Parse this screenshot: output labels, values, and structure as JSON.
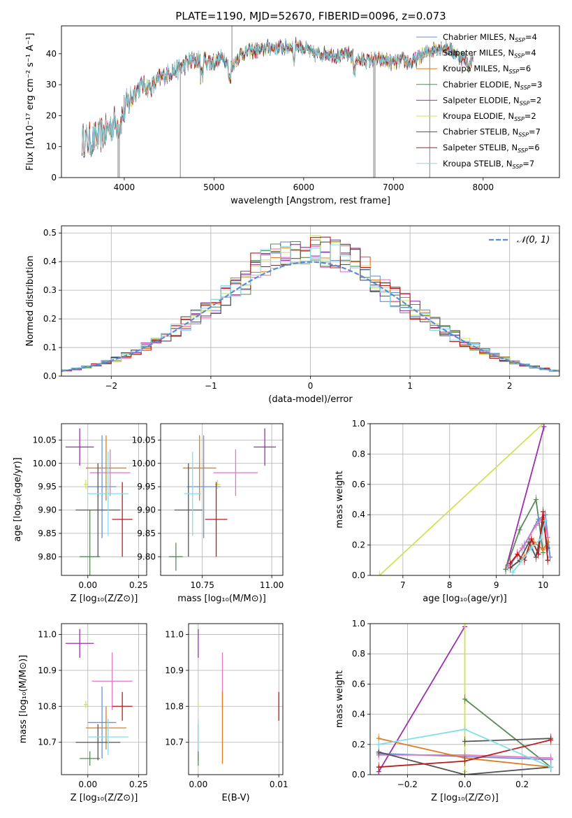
{
  "figure_title": "PLATE=1190, MJD=52670, FIBERID=0096, z=0.073",
  "colors": {
    "chabrier_miles": "#6b8fd6",
    "salpeter_miles": "#e377c2",
    "kroupa_miles": "#e07b1f",
    "chabrier_elodie": "#5a8a5a",
    "salpeter_elodie": "#9b2fae",
    "kroupa_elodie": "#d4e157",
    "chabrier_stelib": "#555555",
    "salpeter_stelib": "#b71c1c",
    "kroupa_stelib": "#80deea",
    "gauss": "#5b8bd6"
  },
  "chart_data": [
    {
      "type": "line",
      "id": "spectrum",
      "title": "PLATE=1190, MJD=52670, FIBERID=0096, z=0.073",
      "xlabel": "wavelength [Angstrom, rest frame]",
      "ylabel": "Flux [fλ10⁻¹⁷ erg cm⁻² s⁻¹ A⁻¹]",
      "xlim": [
        3300,
        8850
      ],
      "ylim": [
        0,
        49
      ],
      "xticks": [
        "4000",
        "5000",
        "6000",
        "7000",
        "8000"
      ],
      "xtick_values": [
        4000,
        5000,
        6000,
        7000,
        8000
      ],
      "yticks": [
        "0",
        "10",
        "20",
        "30",
        "40"
      ],
      "ytick_values": [
        0,
        10,
        20,
        30,
        40
      ],
      "legend": "top-right",
      "continuum": [
        [
          3530,
          12
        ],
        [
          3650,
          12
        ],
        [
          3800,
          15
        ],
        [
          3900,
          18
        ],
        [
          3950,
          17
        ],
        [
          4000,
          22
        ],
        [
          4100,
          27
        ],
        [
          4200,
          30
        ],
        [
          4300,
          29
        ],
        [
          4400,
          32
        ],
        [
          4500,
          34
        ],
        [
          4600,
          35
        ],
        [
          4700,
          37
        ],
        [
          4800,
          38
        ],
        [
          4900,
          38
        ],
        [
          5000,
          37
        ],
        [
          5100,
          39
        ],
        [
          5200,
          36
        ],
        [
          5300,
          40
        ],
        [
          5400,
          41
        ],
        [
          5500,
          41
        ],
        [
          5600,
          42
        ],
        [
          5700,
          42
        ],
        [
          5800,
          42
        ],
        [
          5900,
          43
        ],
        [
          6000,
          42
        ],
        [
          6100,
          40
        ],
        [
          6200,
          40
        ],
        [
          6300,
          40
        ],
        [
          6400,
          39
        ],
        [
          6500,
          40
        ],
        [
          6600,
          38
        ],
        [
          6700,
          38
        ],
        [
          6800,
          38
        ],
        [
          6900,
          38
        ],
        [
          7000,
          37
        ],
        [
          7100,
          38
        ],
        [
          7200,
          37
        ],
        [
          7300,
          39
        ],
        [
          7400,
          41
        ],
        [
          7500,
          42
        ],
        [
          7600,
          42
        ],
        [
          7700,
          40
        ],
        [
          7800,
          38
        ],
        [
          7850,
          36
        ],
        [
          7900,
          41
        ]
      ],
      "series": [
        {
          "name": "Chabrier MILES, N",
          "sub": "SSP",
          "eq": "=4",
          "color_key": "chabrier_miles"
        },
        {
          "name": "Salpeter MILES, N",
          "sub": "SSP",
          "eq": "=4",
          "color_key": "salpeter_miles"
        },
        {
          "name": "Kroupa MILES, N",
          "sub": "SSP",
          "eq": "=6",
          "color_key": "kroupa_miles"
        },
        {
          "name": "Chabrier ELODIE, N",
          "sub": "SSP",
          "eq": "=3",
          "color_key": "chabrier_elodie"
        },
        {
          "name": "Salpeter ELODIE, N",
          "sub": "SSP",
          "eq": "=2",
          "color_key": "salpeter_elodie"
        },
        {
          "name": "Kroupa ELODIE, N",
          "sub": "SSP",
          "eq": "=2",
          "color_key": "kroupa_elodie"
        },
        {
          "name": "Chabrier STELIB, N",
          "sub": "SSP",
          "eq": "=7",
          "color_key": "chabrier_stelib"
        },
        {
          "name": "Salpeter STELIB, N",
          "sub": "SSP",
          "eq": "=6",
          "color_key": "salpeter_stelib"
        },
        {
          "name": "Kroupa STELIB, N",
          "sub": "SSP",
          "eq": "=7",
          "color_key": "kroupa_stelib"
        }
      ],
      "spikes": [
        [
          3930,
          0
        ],
        [
          3945,
          0
        ],
        [
          4625,
          0
        ],
        [
          5200,
          49
        ],
        [
          6780,
          0
        ],
        [
          6795,
          0
        ],
        [
          7405,
          0
        ]
      ]
    },
    {
      "type": "histogram",
      "id": "residuals",
      "xlabel": "(data-model)/error",
      "ylabel": "Normed distribution",
      "xlim": [
        -2.5,
        2.5
      ],
      "ylim": [
        0,
        0.525
      ],
      "xticks": [
        "−2",
        "−1",
        "0",
        "1",
        "2"
      ],
      "xtick_values": [
        -2,
        -1,
        0,
        1,
        2
      ],
      "yticks": [
        "0.0",
        "0.1",
        "0.2",
        "0.3",
        "0.4",
        "0.5"
      ],
      "ytick_values": [
        0,
        0.1,
        0.2,
        0.3,
        0.4,
        0.5
      ],
      "bin_width": 0.1,
      "legend_label": "𝒩(0, 1)",
      "legend": "top-right"
    },
    {
      "type": "scatter",
      "id": "age_vs_Z",
      "xlabel": "Z [log₁₀(Z/Z⊙)]",
      "ylabel": "age  [log₁₀(age/yr)]",
      "xlim": [
        -0.13,
        0.29
      ],
      "ylim": [
        9.76,
        10.085
      ],
      "xticks": [
        "0.00",
        "0.25"
      ],
      "xtick_values": [
        0,
        0.25
      ],
      "yticks": [
        "9.80",
        "9.85",
        "9.90",
        "9.95",
        "10.00",
        "10.05"
      ],
      "ytick_values": [
        9.8,
        9.85,
        9.9,
        9.95,
        10.0,
        10.05
      ],
      "points": [
        {
          "x": 0.07,
          "y": 9.95,
          "xerr": 0.07,
          "yerr": 0.11,
          "color_key": "chabrier_miles"
        },
        {
          "x": 0.11,
          "y": 9.98,
          "xerr": 0.1,
          "yerr": 0.05,
          "color_key": "salpeter_miles"
        },
        {
          "x": 0.09,
          "y": 9.99,
          "xerr": 0.1,
          "yerr": 0.07,
          "color_key": "kroupa_miles"
        },
        {
          "x": 0.01,
          "y": 9.8,
          "xerr": 0.05,
          "yerr": 0.1,
          "color_key": "chabrier_elodie"
        },
        {
          "x": -0.04,
          "y": 10.035,
          "xerr": 0.07,
          "yerr": 0.04,
          "color_key": "salpeter_elodie"
        },
        {
          "x": -0.01,
          "y": 9.955,
          "xerr": 0.01,
          "yerr": 0.01,
          "color_key": "kroupa_elodie"
        },
        {
          "x": 0.05,
          "y": 9.9,
          "xerr": 0.11,
          "yerr": 0.1,
          "color_key": "chabrier_stelib"
        },
        {
          "x": 0.17,
          "y": 9.88,
          "xerr": 0.05,
          "yerr": 0.08,
          "color_key": "salpeter_stelib"
        },
        {
          "x": 0.1,
          "y": 9.935,
          "xerr": 0.1,
          "yerr": 0.09,
          "color_key": "kroupa_stelib"
        }
      ]
    },
    {
      "type": "scatter",
      "id": "age_vs_mass",
      "xlabel": "mass [log₁₀(M/M⊙)]",
      "ylabel": "",
      "xlim": [
        10.6,
        11.04
      ],
      "ylim": [
        9.76,
        10.085
      ],
      "xticks": [
        "10.75",
        "11.00"
      ],
      "xtick_values": [
        10.75,
        11.0
      ],
      "yticks": [
        "9.80",
        "9.85",
        "9.90",
        "9.95",
        "10.00",
        "10.05"
      ],
      "ytick_values": [
        9.8,
        9.85,
        9.9,
        9.95,
        10.0,
        10.05
      ],
      "points": [
        {
          "x": 10.755,
          "y": 9.95,
          "xerr": 0.06,
          "yerr": 0.11,
          "color_key": "chabrier_miles"
        },
        {
          "x": 10.87,
          "y": 9.98,
          "xerr": 0.08,
          "yerr": 0.05,
          "color_key": "salpeter_miles"
        },
        {
          "x": 10.74,
          "y": 9.99,
          "xerr": 0.06,
          "yerr": 0.07,
          "color_key": "kroupa_miles"
        },
        {
          "x": 10.655,
          "y": 9.8,
          "xerr": 0.025,
          "yerr": 0.03,
          "color_key": "chabrier_elodie"
        },
        {
          "x": 10.975,
          "y": 10.035,
          "xerr": 0.04,
          "yerr": 0.04,
          "color_key": "salpeter_elodie"
        },
        {
          "x": 10.805,
          "y": 9.955,
          "xerr": 0.01,
          "yerr": 0.01,
          "color_key": "kroupa_elodie"
        },
        {
          "x": 10.7,
          "y": 9.9,
          "xerr": 0.05,
          "yerr": 0.1,
          "color_key": "chabrier_stelib"
        },
        {
          "x": 10.8,
          "y": 9.88,
          "xerr": 0.04,
          "yerr": 0.08,
          "color_key": "salpeter_stelib"
        },
        {
          "x": 10.715,
          "y": 9.935,
          "xerr": 0.03,
          "yerr": 0.09,
          "color_key": "kroupa_stelib"
        }
      ]
    },
    {
      "type": "line",
      "id": "weight_vs_age",
      "xlabel": "age  [log₁₀(age/yr)]",
      "ylabel": "mass weight",
      "xlim": [
        6.3,
        10.35
      ],
      "ylim": [
        0,
        1
      ],
      "xticks": [
        "7",
        "8",
        "9",
        "10"
      ],
      "xtick_values": [
        7,
        8,
        9,
        10
      ],
      "yticks": [
        "0.0",
        "0.2",
        "0.4",
        "0.6",
        "0.8",
        "1.0"
      ],
      "ytick_values": [
        0,
        0.2,
        0.4,
        0.6,
        0.8,
        1.0
      ],
      "series": [
        {
          "color_key": "kroupa_elodie",
          "x": [
            6.5,
            10.0
          ],
          "y": [
            0.0,
            1.0
          ]
        },
        {
          "color_key": "salpeter_elodie",
          "x": [
            9.2,
            10.02
          ],
          "y": [
            0.04,
            0.98
          ]
        },
        {
          "color_key": "chabrier_elodie",
          "x": [
            9.2,
            9.5,
            9.85,
            10.0
          ],
          "y": [
            0.04,
            0.3,
            0.5,
            0.15
          ]
        },
        {
          "color_key": "chabrier_miles",
          "x": [
            9.3,
            9.6,
            9.9,
            10.05,
            10.15
          ],
          "y": [
            0.07,
            0.2,
            0.37,
            0.4,
            0.12
          ]
        },
        {
          "color_key": "salpeter_miles",
          "x": [
            9.25,
            9.55,
            9.85,
            10.0,
            10.1
          ],
          "y": [
            0.06,
            0.18,
            0.33,
            0.38,
            0.25
          ]
        },
        {
          "color_key": "kroupa_miles",
          "x": [
            9.3,
            9.6,
            9.8,
            10.0,
            10.1
          ],
          "y": [
            0.05,
            0.12,
            0.22,
            0.17,
            0.22
          ]
        },
        {
          "color_key": "chabrier_stelib",
          "x": [
            9.3,
            9.5,
            9.7,
            9.85,
            10.0,
            10.1
          ],
          "y": [
            0.05,
            0.1,
            0.22,
            0.12,
            0.35,
            0.18
          ]
        },
        {
          "color_key": "salpeter_stelib",
          "x": [
            9.3,
            9.45,
            9.6,
            9.75,
            9.9,
            10.0,
            10.1
          ],
          "y": [
            0.08,
            0.14,
            0.1,
            0.24,
            0.14,
            0.42,
            0.1
          ]
        },
        {
          "color_key": "kroupa_stelib",
          "x": [
            9.35,
            9.55,
            9.75,
            9.95,
            10.05
          ],
          "y": [
            0.02,
            0.1,
            0.18,
            0.24,
            0.36
          ]
        }
      ]
    },
    {
      "type": "scatter",
      "id": "mass_vs_Z",
      "xlabel": "Z [log₁₀(Z/Z⊙)]",
      "ylabel": "mass [log₁₀(M/M⊙)]",
      "xlim": [
        -0.13,
        0.29
      ],
      "ylim": [
        10.61,
        11.03
      ],
      "xticks": [
        "0.00",
        "0.25"
      ],
      "xtick_values": [
        0,
        0.25
      ],
      "yticks": [
        "10.7",
        "10.8",
        "10.9",
        "11.0"
      ],
      "ytick_values": [
        10.7,
        10.8,
        10.9,
        11.0
      ],
      "points": [
        {
          "x": 0.07,
          "y": 10.755,
          "xerr": 0.07,
          "yerr": 0.1,
          "color_key": "chabrier_miles"
        },
        {
          "x": 0.12,
          "y": 10.87,
          "xerr": 0.1,
          "yerr": 0.08,
          "color_key": "salpeter_miles"
        },
        {
          "x": 0.09,
          "y": 10.74,
          "xerr": 0.1,
          "yerr": 0.06,
          "color_key": "kroupa_miles"
        },
        {
          "x": 0.01,
          "y": 10.655,
          "xerr": 0.05,
          "yerr": 0.02,
          "color_key": "chabrier_elodie"
        },
        {
          "x": -0.04,
          "y": 10.975,
          "xerr": 0.07,
          "yerr": 0.04,
          "color_key": "salpeter_elodie"
        },
        {
          "x": -0.01,
          "y": 10.805,
          "xerr": 0.01,
          "yerr": 0.01,
          "color_key": "kroupa_elodie"
        },
        {
          "x": 0.05,
          "y": 10.7,
          "xerr": 0.11,
          "yerr": 0.05,
          "color_key": "chabrier_stelib"
        },
        {
          "x": 0.17,
          "y": 10.8,
          "xerr": 0.05,
          "yerr": 0.04,
          "color_key": "salpeter_stelib"
        },
        {
          "x": 0.1,
          "y": 10.715,
          "xerr": 0.1,
          "yerr": 0.05,
          "color_key": "kroupa_stelib"
        }
      ]
    },
    {
      "type": "scatter",
      "id": "mass_vs_ebv",
      "xlabel": "E(B-V)",
      "ylabel": "",
      "xlim": [
        -0.0012,
        0.0105
      ],
      "ylim": [
        10.61,
        11.03
      ],
      "xticks": [
        "0.00",
        "0.01"
      ],
      "xtick_values": [
        0,
        0.01
      ],
      "yticks": [
        "10.7",
        "10.8",
        "10.9",
        "11.0"
      ],
      "ytick_values": [
        10.7,
        10.8,
        10.9,
        11.0
      ],
      "points": [
        {
          "x": 0.0,
          "y": 10.975,
          "xerr": 0,
          "yerr": 0.04,
          "color_key": "salpeter_elodie"
        },
        {
          "x": 0.0,
          "y": 10.805,
          "xerr": 0,
          "yerr": 0.01,
          "color_key": "kroupa_elodie"
        },
        {
          "x": 0.0,
          "y": 10.7,
          "xerr": 0,
          "yerr": 0.05,
          "color_key": "chabrier_stelib"
        },
        {
          "x": 0.0,
          "y": 10.715,
          "xerr": 0,
          "yerr": 0.05,
          "color_key": "kroupa_stelib"
        },
        {
          "x": 0.0,
          "y": 10.655,
          "xerr": 0,
          "yerr": 0.02,
          "color_key": "chabrier_elodie"
        },
        {
          "x": 0.003,
          "y": 10.87,
          "xerr": 0,
          "yerr": 0.08,
          "color_key": "salpeter_miles"
        },
        {
          "x": 0.003,
          "y": 10.74,
          "xerr": 0,
          "yerr": 0.1,
          "color_key": "kroupa_miles"
        },
        {
          "x": 0.01,
          "y": 10.8,
          "xerr": 0,
          "yerr": 0.04,
          "color_key": "salpeter_stelib"
        }
      ]
    },
    {
      "type": "line",
      "id": "weight_vs_Z",
      "xlabel": "Z [log₁₀(Z/Z⊙)]",
      "ylabel": "mass weight",
      "xlim": [
        -0.33,
        0.33
      ],
      "ylim": [
        0,
        1
      ],
      "xticks": [
        "−0.2",
        "0.0",
        "0.2"
      ],
      "xtick_values": [
        -0.2,
        0,
        0.2
      ],
      "yticks": [
        "0.0",
        "0.2",
        "0.4",
        "0.6",
        "0.8",
        "1.0"
      ],
      "ytick_values": [
        0,
        0.2,
        0.4,
        0.6,
        0.8,
        1.0
      ],
      "series": [
        {
          "color_key": "salpeter_elodie",
          "x": [
            -0.3,
            0.0
          ],
          "y": [
            0.02,
            0.98
          ]
        },
        {
          "color_key": "kroupa_elodie",
          "x": [
            0.0,
            0.0
          ],
          "y": [
            0.02,
            1.0
          ]
        },
        {
          "color_key": "chabrier_elodie",
          "x": [
            0.0,
            0.3
          ],
          "y": [
            0.5,
            0.05
          ]
        },
        {
          "color_key": "chabrier_miles",
          "x": [
            -0.3,
            0.0,
            0.3
          ],
          "y": [
            0.14,
            0.12,
            0.1
          ]
        },
        {
          "color_key": "salpeter_miles",
          "x": [
            -0.3,
            0.0,
            0.3
          ],
          "y": [
            0.13,
            0.13,
            0.11
          ]
        },
        {
          "color_key": "kroupa_miles",
          "x": [
            -0.3,
            0.0,
            0.3
          ],
          "y": [
            0.24,
            0.11,
            0.05
          ]
        },
        {
          "color_key": "chabrier_stelib",
          "x": [
            -0.3,
            0.0,
            0.3
          ],
          "y": [
            0.15,
            0.0,
            0.05
          ]
        },
        {
          "color_key": "chabrier_stelib",
          "x": [
            0.0,
            0.3
          ],
          "y": [
            0.22,
            0.24
          ]
        },
        {
          "color_key": "salpeter_stelib",
          "x": [
            -0.3,
            0.0,
            0.3
          ],
          "y": [
            0.05,
            0.09,
            0.23
          ]
        },
        {
          "color_key": "kroupa_stelib",
          "x": [
            -0.3,
            0.0,
            0.3
          ],
          "y": [
            0.2,
            0.3,
            0.05
          ]
        }
      ]
    }
  ]
}
